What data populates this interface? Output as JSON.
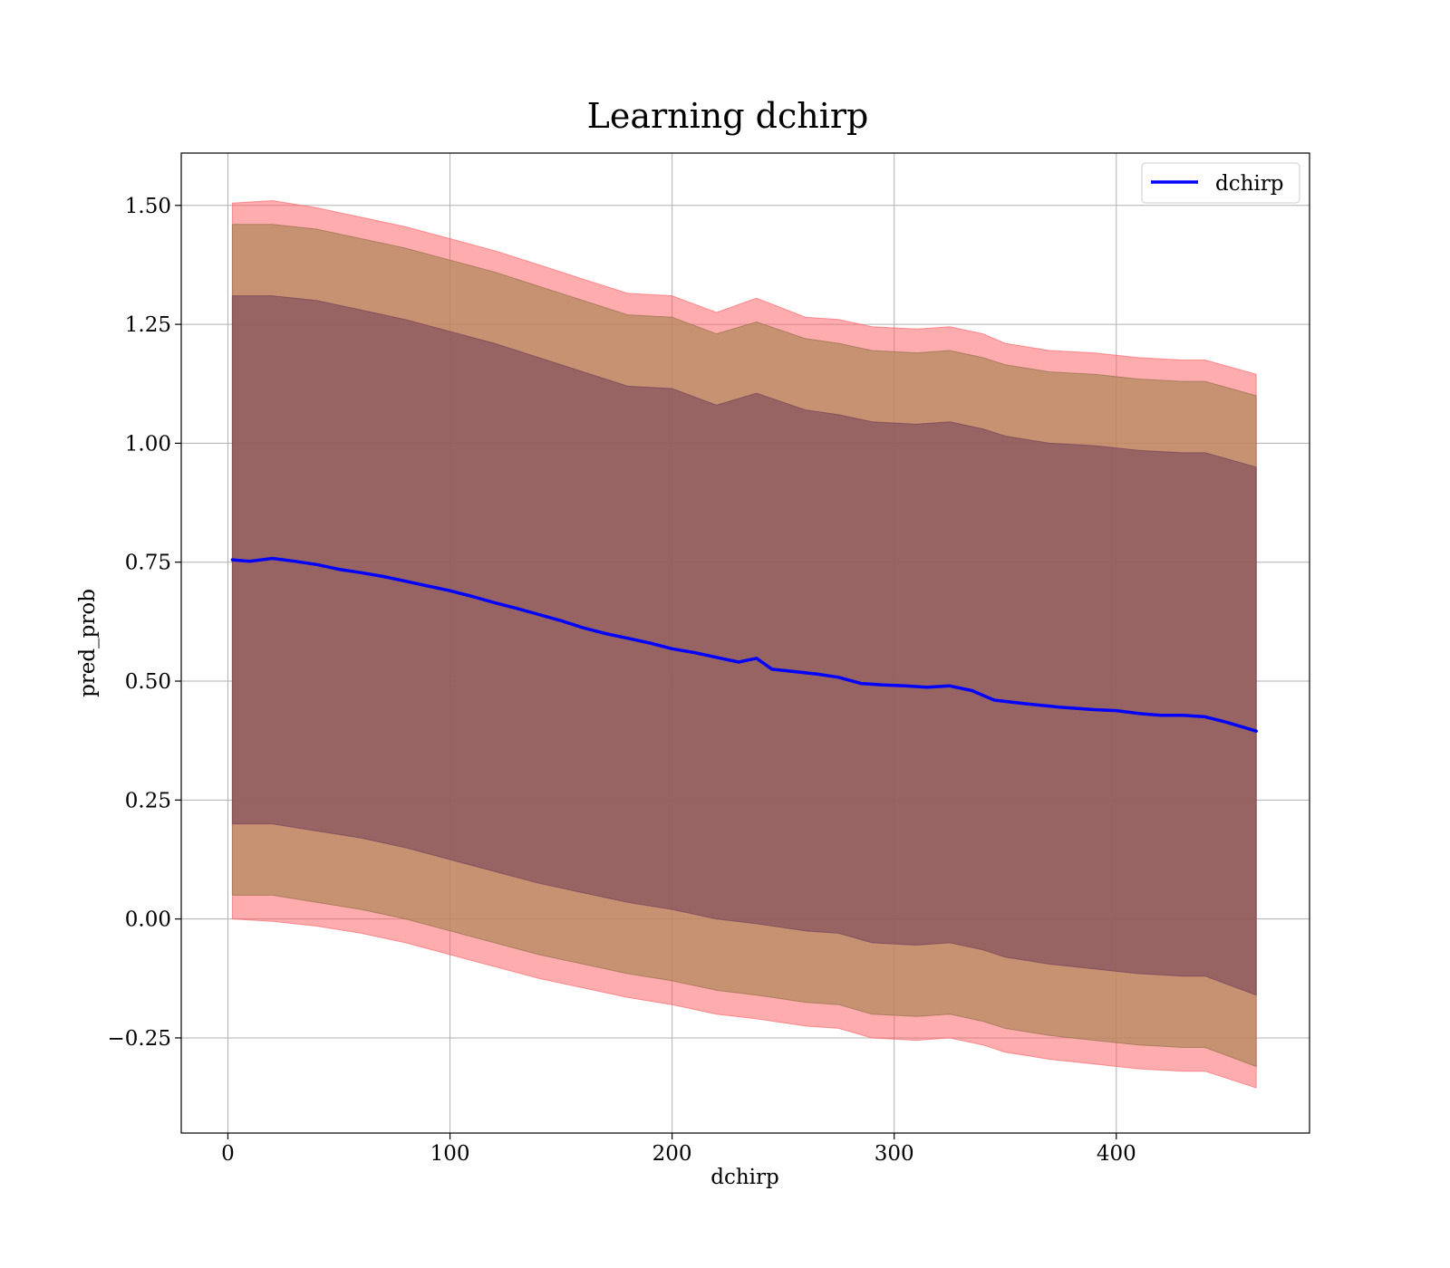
{
  "chart_data": {
    "type": "area",
    "title": "Learning dchirp",
    "xlabel": "dchirp",
    "ylabel": "pred_prob",
    "xlim": [
      -21,
      487
    ],
    "ylim": [
      -0.45,
      1.61
    ],
    "xticks": [
      0,
      100,
      200,
      300,
      400
    ],
    "xtick_labels": [
      "0",
      "100",
      "200",
      "300",
      "400"
    ],
    "yticks": [
      -0.25,
      0.0,
      0.25,
      0.5,
      0.75,
      1.0,
      1.25,
      1.5
    ],
    "ytick_labels": [
      "−0.25",
      "0.00",
      "0.25",
      "0.50",
      "0.75",
      "1.00",
      "1.25",
      "1.50"
    ],
    "grid": true,
    "legend_position": "upper-right",
    "series": [
      {
        "name": "dchirp",
        "color": "#0000ff",
        "x": [
          2,
          10,
          20,
          30,
          40,
          50,
          60,
          70,
          80,
          90,
          100,
          110,
          120,
          130,
          140,
          150,
          160,
          170,
          180,
          190,
          200,
          210,
          220,
          230,
          238,
          245,
          255,
          265,
          275,
          285,
          295,
          305,
          315,
          325,
          335,
          345,
          360,
          375,
          390,
          400,
          410,
          420,
          430,
          440,
          450,
          463
        ],
        "y": [
          0.755,
          0.752,
          0.758,
          0.752,
          0.745,
          0.735,
          0.728,
          0.72,
          0.71,
          0.7,
          0.69,
          0.678,
          0.665,
          0.653,
          0.64,
          0.627,
          0.612,
          0.6,
          0.59,
          0.58,
          0.568,
          0.56,
          0.55,
          0.54,
          0.548,
          0.525,
          0.52,
          0.515,
          0.508,
          0.495,
          0.492,
          0.49,
          0.487,
          0.49,
          0.48,
          0.46,
          0.452,
          0.445,
          0.44,
          0.438,
          0.432,
          0.428,
          0.428,
          0.425,
          0.413,
          0.395
        ]
      }
    ],
    "bands": {
      "x": [
        2,
        20,
        40,
        60,
        80,
        100,
        120,
        140,
        160,
        180,
        200,
        220,
        238,
        260,
        275,
        290,
        310,
        325,
        340,
        350,
        370,
        390,
        410,
        430,
        440,
        463
      ],
      "outer_upper": [
        1.505,
        1.51,
        1.495,
        1.475,
        1.455,
        1.43,
        1.405,
        1.375,
        1.345,
        1.315,
        1.31,
        1.275,
        1.305,
        1.265,
        1.26,
        1.245,
        1.24,
        1.245,
        1.23,
        1.21,
        1.195,
        1.19,
        1.18,
        1.175,
        1.175,
        1.145
      ],
      "outer_lower": [
        0.0,
        -0.005,
        -0.015,
        -0.03,
        -0.05,
        -0.075,
        -0.1,
        -0.125,
        -0.145,
        -0.165,
        -0.18,
        -0.2,
        -0.21,
        -0.225,
        -0.23,
        -0.25,
        -0.255,
        -0.25,
        -0.265,
        -0.28,
        -0.295,
        -0.305,
        -0.315,
        -0.32,
        -0.32,
        -0.355
      ],
      "mid_upper": [
        1.46,
        1.46,
        1.45,
        1.43,
        1.41,
        1.385,
        1.36,
        1.33,
        1.3,
        1.27,
        1.265,
        1.23,
        1.255,
        1.22,
        1.21,
        1.195,
        1.19,
        1.195,
        1.18,
        1.165,
        1.15,
        1.145,
        1.135,
        1.13,
        1.13,
        1.1
      ],
      "mid_lower": [
        0.05,
        0.05,
        0.035,
        0.02,
        0.0,
        -0.025,
        -0.05,
        -0.075,
        -0.095,
        -0.115,
        -0.13,
        -0.15,
        -0.16,
        -0.175,
        -0.18,
        -0.2,
        -0.205,
        -0.2,
        -0.215,
        -0.23,
        -0.245,
        -0.255,
        -0.265,
        -0.27,
        -0.27,
        -0.31
      ],
      "inner_upper": [
        1.31,
        1.31,
        1.3,
        1.28,
        1.26,
        1.235,
        1.21,
        1.18,
        1.15,
        1.12,
        1.115,
        1.08,
        1.105,
        1.07,
        1.06,
        1.045,
        1.04,
        1.045,
        1.03,
        1.015,
        1.0,
        0.995,
        0.985,
        0.98,
        0.98,
        0.95
      ],
      "inner_lower": [
        0.2,
        0.2,
        0.185,
        0.17,
        0.15,
        0.125,
        0.1,
        0.075,
        0.055,
        0.035,
        0.02,
        0.0,
        -0.01,
        -0.025,
        -0.03,
        -0.05,
        -0.055,
        -0.05,
        -0.065,
        -0.08,
        -0.095,
        -0.105,
        -0.115,
        -0.12,
        -0.12,
        -0.16
      ]
    },
    "colors": {
      "outer_band": "#ff5a5f",
      "mid_band": "#b48a5c",
      "inner_band": "#7f4c5c",
      "line": "#0000ff"
    }
  }
}
